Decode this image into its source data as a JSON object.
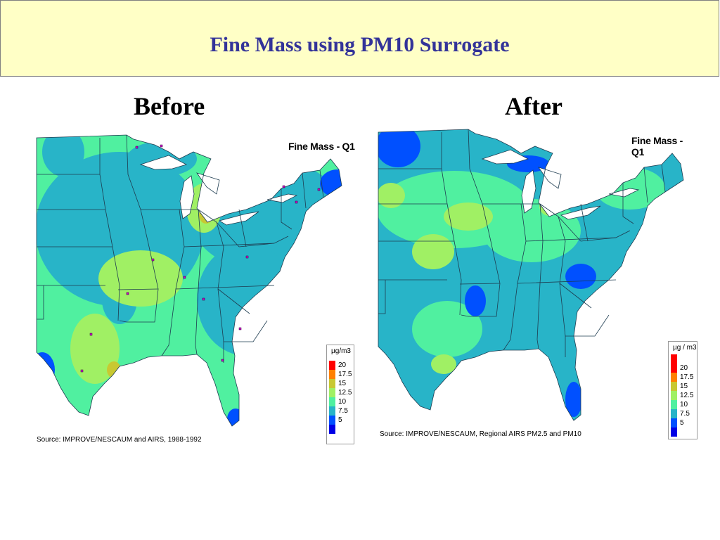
{
  "slide": {
    "title": "Fine Mass using PM10 Surrogate"
  },
  "panels": [
    {
      "label": "Before",
      "map_title": "Fine Mass - Q1",
      "source": "Source: IMPROVE/NESCAUM and AIRS, 1988-1992",
      "legend_unit": "µg/m3"
    },
    {
      "label": "After",
      "map_title": "Fine Mass - Q1",
      "source": "Source: IMPROVE/NESCAUM, Regional AIRS PM2.5 and PM10",
      "legend_unit": "µg / m3"
    }
  ],
  "legend": {
    "labels": [
      "20",
      "17.5",
      "15",
      "12.5",
      "10",
      "7.5",
      "5"
    ],
    "colors": [
      "#ff0000",
      "#ff8000",
      "#c8c832",
      "#a0f064",
      "#50f0a0",
      "#28b4c8",
      "#0050ff",
      "#0000e6"
    ]
  },
  "colors": {
    "title_text": "#333399",
    "title_bg": "#ffffc6",
    "water": "#ffffff",
    "borders": "#1e3c50"
  }
}
